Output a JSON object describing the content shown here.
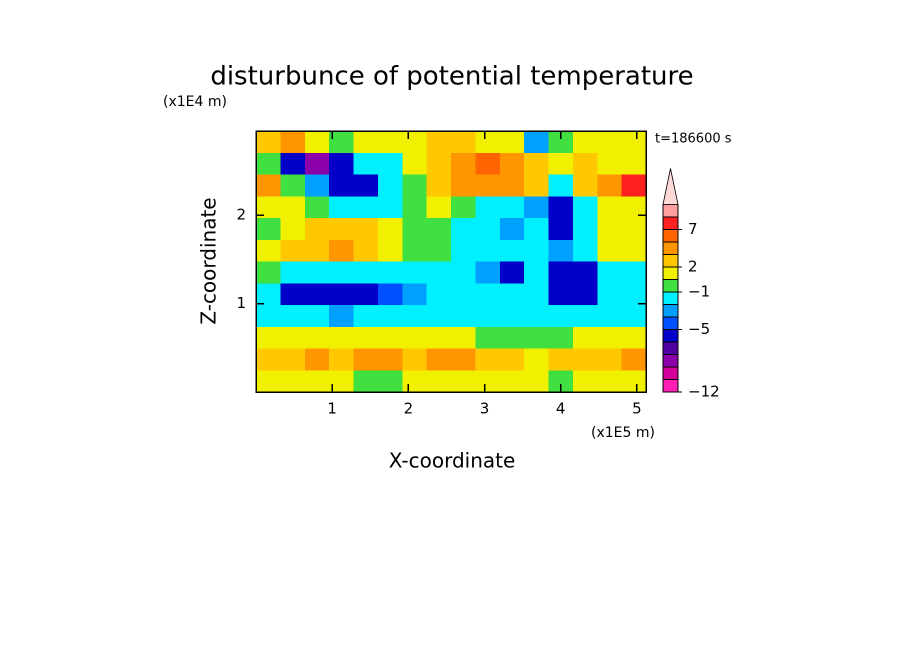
{
  "chart_data": {
    "type": "contour",
    "title": "disturbunce of potential temperature",
    "y_unit": "(x1E4 m)",
    "x_unit": "(x1E5 m)",
    "annotation": "t=186600 s",
    "x_label": "X-coordinate",
    "y_label": "Z-coordinate",
    "xlim": [
      0,
      5.12
    ],
    "ylim": [
      0,
      2.95
    ],
    "xticks": [
      1,
      2,
      3,
      4,
      5
    ],
    "yticks": [
      1,
      2
    ],
    "z": [
      [
        2.5,
        4,
        1,
        -0.5,
        0.5,
        0.5,
        1,
        2.5,
        2.5,
        1,
        0.5,
        -3,
        -0.5,
        1,
        0.5,
        0.5
      ],
      [
        -1,
        -6,
        -8,
        -5.5,
        -1.5,
        -1.5,
        1,
        2.5,
        4,
        5,
        3.5,
        2.5,
        1,
        2.5,
        1,
        0.5
      ],
      [
        3,
        -0.5,
        -2.5,
        -5.5,
        -5.5,
        -1.5,
        -0.5,
        2.5,
        4,
        4,
        3.5,
        2.5,
        -1.5,
        2.5,
        3.5,
        7.5
      ],
      [
        1,
        0.5,
        -0.5,
        -1.5,
        -1.5,
        -1.5,
        -0.5,
        0.5,
        -0.5,
        -1.5,
        -1.5,
        -3,
        -5.5,
        -1.5,
        0.5,
        1
      ],
      [
        -0.5,
        0.5,
        2.5,
        2.5,
        2.5,
        0.5,
        -0.5,
        -0.5,
        -1.5,
        -1.5,
        -3,
        -1.5,
        -5.5,
        -1.5,
        1,
        1
      ],
      [
        1,
        2.5,
        2.5,
        3.5,
        2.5,
        1,
        -0.5,
        -0.5,
        -1.5,
        -1.5,
        -1.5,
        -1.5,
        -3,
        -1.5,
        0.5,
        0.5
      ],
      [
        -0.5,
        -1.5,
        -1.5,
        -1.5,
        -1.5,
        -1.5,
        -1.5,
        -1.5,
        -1.5,
        -3,
        -5.5,
        -1.5,
        -5.5,
        -5.5,
        -1.5,
        -1.5
      ],
      [
        -1.5,
        -5.5,
        -5.5,
        -5.5,
        -5.5,
        -4.5,
        -3,
        -1.5,
        -1.5,
        -1.5,
        -1.5,
        -1.5,
        -5.5,
        -5.5,
        -1.5,
        -1.5
      ],
      [
        -1.5,
        -1.5,
        -1.5,
        -3,
        -1.5,
        -1.5,
        -1.5,
        -1.5,
        -1.5,
        -1.5,
        -1.5,
        -1.5,
        -1.5,
        -1.5,
        -1.5,
        -1.5
      ],
      [
        0.5,
        0.5,
        1,
        1,
        1,
        1,
        0.5,
        0.5,
        1,
        -0.5,
        -0.5,
        -0.5,
        -0.5,
        1,
        0.5,
        0.5
      ],
      [
        2.5,
        2.5,
        3.5,
        2.5,
        3.5,
        3.5,
        2.5,
        3.5,
        3.5,
        2.5,
        2.5,
        1,
        2.5,
        2.5,
        2.5,
        3.5
      ],
      [
        1,
        1,
        1,
        1,
        -0.5,
        -0.5,
        0.5,
        1,
        1,
        0.5,
        1,
        0.5,
        -0.5,
        0.5,
        1,
        1
      ]
    ],
    "colorbar": {
      "levels": [
        -12,
        -10,
        -8,
        -7,
        -6,
        -5,
        -4,
        -2,
        -1,
        0,
        2,
        3,
        5,
        7,
        9,
        12
      ],
      "colors": [
        "#ff1eb4",
        "#d2009b",
        "#8c00aa",
        "#5000a0",
        "#0000c8",
        "#0050ff",
        "#00a0ff",
        "#00f0ff",
        "#40e040",
        "#f0f000",
        "#ffc800",
        "#ff9600",
        "#ff6400",
        "#ff2020",
        "#ffa0a0"
      ],
      "over_color": "#ffd8d8",
      "ticks": [
        {
          "value": -12,
          "label": "−12"
        },
        {
          "value": -5,
          "label": "−5"
        },
        {
          "value": -1,
          "label": "−1"
        },
        2,
        7
      ]
    }
  }
}
